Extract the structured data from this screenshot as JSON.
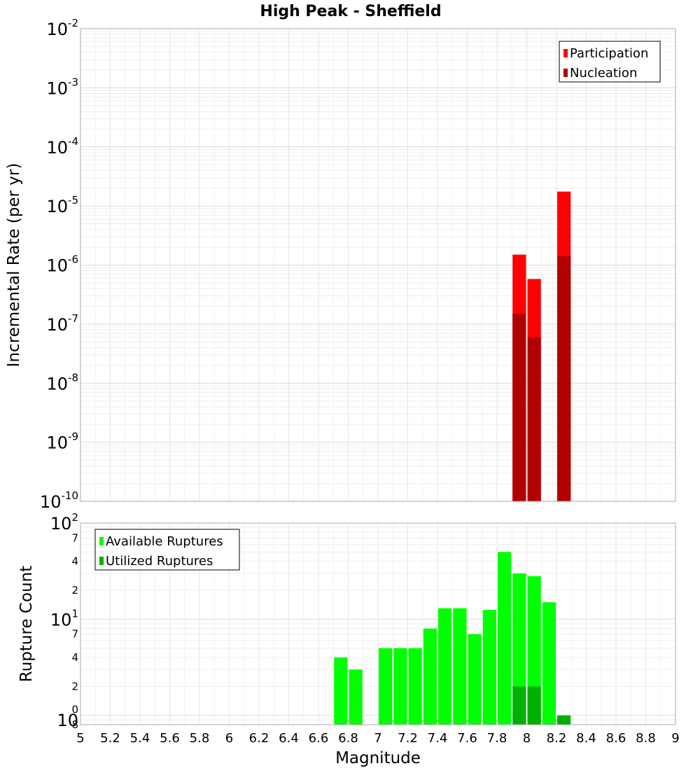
{
  "title": "High Peak - Sheffield",
  "chart_data": [
    {
      "type": "bar",
      "name": "rate-panel",
      "ylabel": "Incremental Rate (per yr)",
      "yscale": "log",
      "ylim": [
        1e-10,
        0.01
      ],
      "xlim": [
        5,
        9
      ],
      "grid": true,
      "legend_position": "top-right",
      "ytick_labels": [
        {
          "base": "10",
          "exp": "-2",
          "value": 0.01
        },
        {
          "base": "10",
          "exp": "-3",
          "value": 0.001
        },
        {
          "base": "10",
          "exp": "-4",
          "value": 0.0001
        },
        {
          "base": "10",
          "exp": "-5",
          "value": 1e-05
        },
        {
          "base": "10",
          "exp": "-6",
          "value": 1e-06
        },
        {
          "base": "10",
          "exp": "-7",
          "value": 1e-07
        },
        {
          "base": "10",
          "exp": "-8",
          "value": 1e-08
        },
        {
          "base": "10",
          "exp": "-9",
          "value": 1e-09
        },
        {
          "base": "10",
          "exp": "-10",
          "value": 1e-10
        }
      ],
      "series": [
        {
          "name": "Participation",
          "color": "#ff0000",
          "points": [
            [
              7.95,
              1.5e-06
            ],
            [
              8.05,
              5.8e-07
            ],
            [
              8.25,
              1.75e-05
            ]
          ]
        },
        {
          "name": "Nucleation",
          "color": "#b00000",
          "points": [
            [
              7.95,
              1.5e-07
            ],
            [
              8.05,
              6e-08
            ],
            [
              8.25,
              1.4e-06
            ]
          ]
        }
      ]
    },
    {
      "type": "bar",
      "name": "count-panel",
      "xlabel": "Magnitude",
      "ylabel": "Rupture Count",
      "yscale": "log",
      "ylim": [
        0.8,
        100
      ],
      "xlim": [
        5,
        9
      ],
      "grid": true,
      "legend_position": "top-left",
      "xtick_labels": [
        "5",
        "5.2",
        "5.4",
        "5.6",
        "5.8",
        "6",
        "6.2",
        "6.4",
        "6.6",
        "6.8",
        "7",
        "7.2",
        "7.4",
        "7.6",
        "7.8",
        "8",
        "8.2",
        "8.4",
        "8.6",
        "8.8",
        "9"
      ],
      "xtick_values": [
        5,
        5.2,
        5.4,
        5.6,
        5.8,
        6,
        6.2,
        6.4,
        6.6,
        6.8,
        7,
        7.2,
        7.4,
        7.6,
        7.8,
        8,
        8.2,
        8.4,
        8.6,
        8.8,
        9
      ],
      "ytick_labels": [
        {
          "base": "10",
          "exp": "2",
          "value": 100
        },
        {
          "base": "",
          "exp": "7",
          "value": 70
        },
        {
          "base": "",
          "exp": "4",
          "value": 40
        },
        {
          "base": "",
          "exp": "2",
          "value": 20
        },
        {
          "base": "10",
          "exp": "1",
          "value": 10
        },
        {
          "base": "",
          "exp": "7",
          "value": 7
        },
        {
          "base": "",
          "exp": "4",
          "value": 4
        },
        {
          "base": "",
          "exp": "2",
          "value": 2
        },
        {
          "base": "",
          "exp": "0",
          "value": 1.15
        },
        {
          "base": "10",
          "exp": "",
          "value": 0.9
        },
        {
          "base": "8",
          "exp": "",
          "value": 0.8
        }
      ],
      "series": [
        {
          "name": "Available Ruptures",
          "color": "#00ff00",
          "points": [
            [
              6.75,
              4
            ],
            [
              6.85,
              3
            ],
            [
              7.05,
              5
            ],
            [
              7.15,
              5
            ],
            [
              7.25,
              5
            ],
            [
              7.35,
              8
            ],
            [
              7.45,
              13
            ],
            [
              7.55,
              13
            ],
            [
              7.65,
              7
            ],
            [
              7.75,
              12.5
            ],
            [
              7.85,
              50
            ],
            [
              7.95,
              30
            ],
            [
              8.05,
              28
            ],
            [
              8.15,
              15
            ]
          ]
        },
        {
          "name": "Utilized Ruptures",
          "color": "#00b000",
          "points": [
            [
              7.95,
              2
            ],
            [
              8.05,
              2
            ],
            [
              8.25,
              1
            ]
          ]
        }
      ]
    }
  ]
}
